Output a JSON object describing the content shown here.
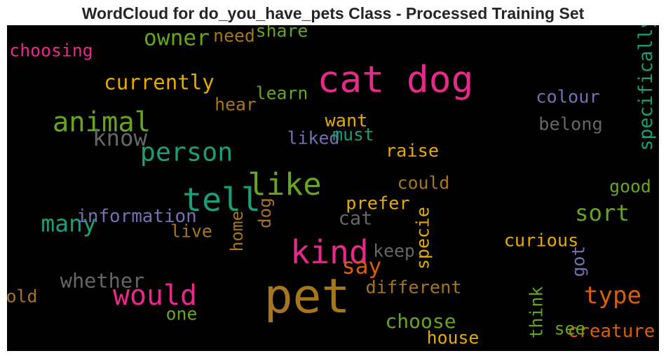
{
  "chart_data": {
    "type": "wordcloud",
    "title": "WordCloud for do_you_have_pets Class - Processed Training Set",
    "background": "#000000",
    "words": [
      {
        "text": "pet",
        "weight": 1.0,
        "color": "#a6761d",
        "vertical": false
      },
      {
        "text": "cat dog",
        "weight": 0.72,
        "color": "#e7298a",
        "vertical": false
      },
      {
        "text": "kind",
        "weight": 0.6,
        "color": "#e7298a",
        "vertical": false
      },
      {
        "text": "tell",
        "weight": 0.6,
        "color": "#1b9e77",
        "vertical": false
      },
      {
        "text": "like",
        "weight": 0.55,
        "color": "#66a61e",
        "vertical": false
      },
      {
        "text": "would",
        "weight": 0.48,
        "color": "#e7298a",
        "vertical": false
      },
      {
        "text": "animal",
        "weight": 0.46,
        "color": "#66a61e",
        "vertical": false
      },
      {
        "text": "person",
        "weight": 0.42,
        "color": "#1b9e77",
        "vertical": false
      },
      {
        "text": "type",
        "weight": 0.37,
        "color": "#d95f02",
        "vertical": false
      },
      {
        "text": "many",
        "weight": 0.35,
        "color": "#1b9e77",
        "vertical": false
      },
      {
        "text": "know",
        "weight": 0.34,
        "color": "#666666",
        "vertical": false
      },
      {
        "text": "sort",
        "weight": 0.34,
        "color": "#66a61e",
        "vertical": false
      },
      {
        "text": "owner",
        "weight": 0.32,
        "color": "#66a61e",
        "vertical": false
      },
      {
        "text": "say",
        "weight": 0.32,
        "color": "#d95f02",
        "vertical": false
      },
      {
        "text": "currently",
        "weight": 0.28,
        "color": "#e6ab02",
        "vertical": false
      },
      {
        "text": "whether",
        "weight": 0.27,
        "color": "#666666",
        "vertical": false
      },
      {
        "text": "choose",
        "weight": 0.26,
        "color": "#66a61e",
        "vertical": false
      },
      {
        "text": "cat",
        "weight": 0.24,
        "color": "#666666",
        "vertical": false
      },
      {
        "text": "specifically",
        "weight": 0.23,
        "color": "#1b9e77",
        "vertical": true
      },
      {
        "text": "information",
        "weight": 0.22,
        "color": "#7570b3",
        "vertical": false
      },
      {
        "text": "creature",
        "weight": 0.22,
        "color": "#d95f02",
        "vertical": false
      },
      {
        "text": "curious",
        "weight": 0.21,
        "color": "#e6ab02",
        "vertical": false
      },
      {
        "text": "prefer",
        "weight": 0.21,
        "color": "#e6ab02",
        "vertical": false
      },
      {
        "text": "different",
        "weight": 0.21,
        "color": "#a6761d",
        "vertical": false
      },
      {
        "text": "colour",
        "weight": 0.21,
        "color": "#7570b3",
        "vertical": false
      },
      {
        "text": "belong",
        "weight": 0.21,
        "color": "#666666",
        "vertical": false
      },
      {
        "text": "want",
        "weight": 0.21,
        "color": "#e6ab02",
        "vertical": false
      },
      {
        "text": "raise",
        "weight": 0.21,
        "color": "#e6ab02",
        "vertical": false
      },
      {
        "text": "learn",
        "weight": 0.2,
        "color": "#66a61e",
        "vertical": false
      },
      {
        "text": "liked",
        "weight": 0.2,
        "color": "#7570b3",
        "vertical": false
      },
      {
        "text": "choosing",
        "weight": 0.2,
        "color": "#e7298a",
        "vertical": false
      },
      {
        "text": "need",
        "weight": 0.2,
        "color": "#a6761d",
        "vertical": false
      },
      {
        "text": "share",
        "weight": 0.2,
        "color": "#66a61e",
        "vertical": false
      },
      {
        "text": "hear",
        "weight": 0.2,
        "color": "#a6761d",
        "vertical": false
      },
      {
        "text": "must",
        "weight": 0.2,
        "color": "#1b9e77",
        "vertical": false
      },
      {
        "text": "could",
        "weight": 0.2,
        "color": "#a6761d",
        "vertical": false
      },
      {
        "text": "good",
        "weight": 0.2,
        "color": "#66a61e",
        "vertical": false
      },
      {
        "text": "live",
        "weight": 0.2,
        "color": "#a6761d",
        "vertical": false
      },
      {
        "text": "keep",
        "weight": 0.2,
        "color": "#666666",
        "vertical": false
      },
      {
        "text": "house",
        "weight": 0.2,
        "color": "#e6ab02",
        "vertical": false
      },
      {
        "text": "see",
        "weight": 0.2,
        "color": "#66a61e",
        "vertical": false
      },
      {
        "text": "old",
        "weight": 0.2,
        "color": "#a6761d",
        "vertical": false
      },
      {
        "text": "one",
        "weight": 0.2,
        "color": "#66a61e",
        "vertical": false
      },
      {
        "text": "think",
        "weight": 0.2,
        "color": "#66a61e",
        "vertical": true
      },
      {
        "text": "specie",
        "weight": 0.2,
        "color": "#e6ab02",
        "vertical": true
      },
      {
        "text": "got",
        "weight": 0.2,
        "color": "#7570b3",
        "vertical": true
      },
      {
        "text": "home",
        "weight": 0.19,
        "color": "#a6761d",
        "vertical": true
      },
      {
        "text": "dog",
        "weight": 0.19,
        "color": "#a6761d",
        "vertical": true
      }
    ]
  }
}
